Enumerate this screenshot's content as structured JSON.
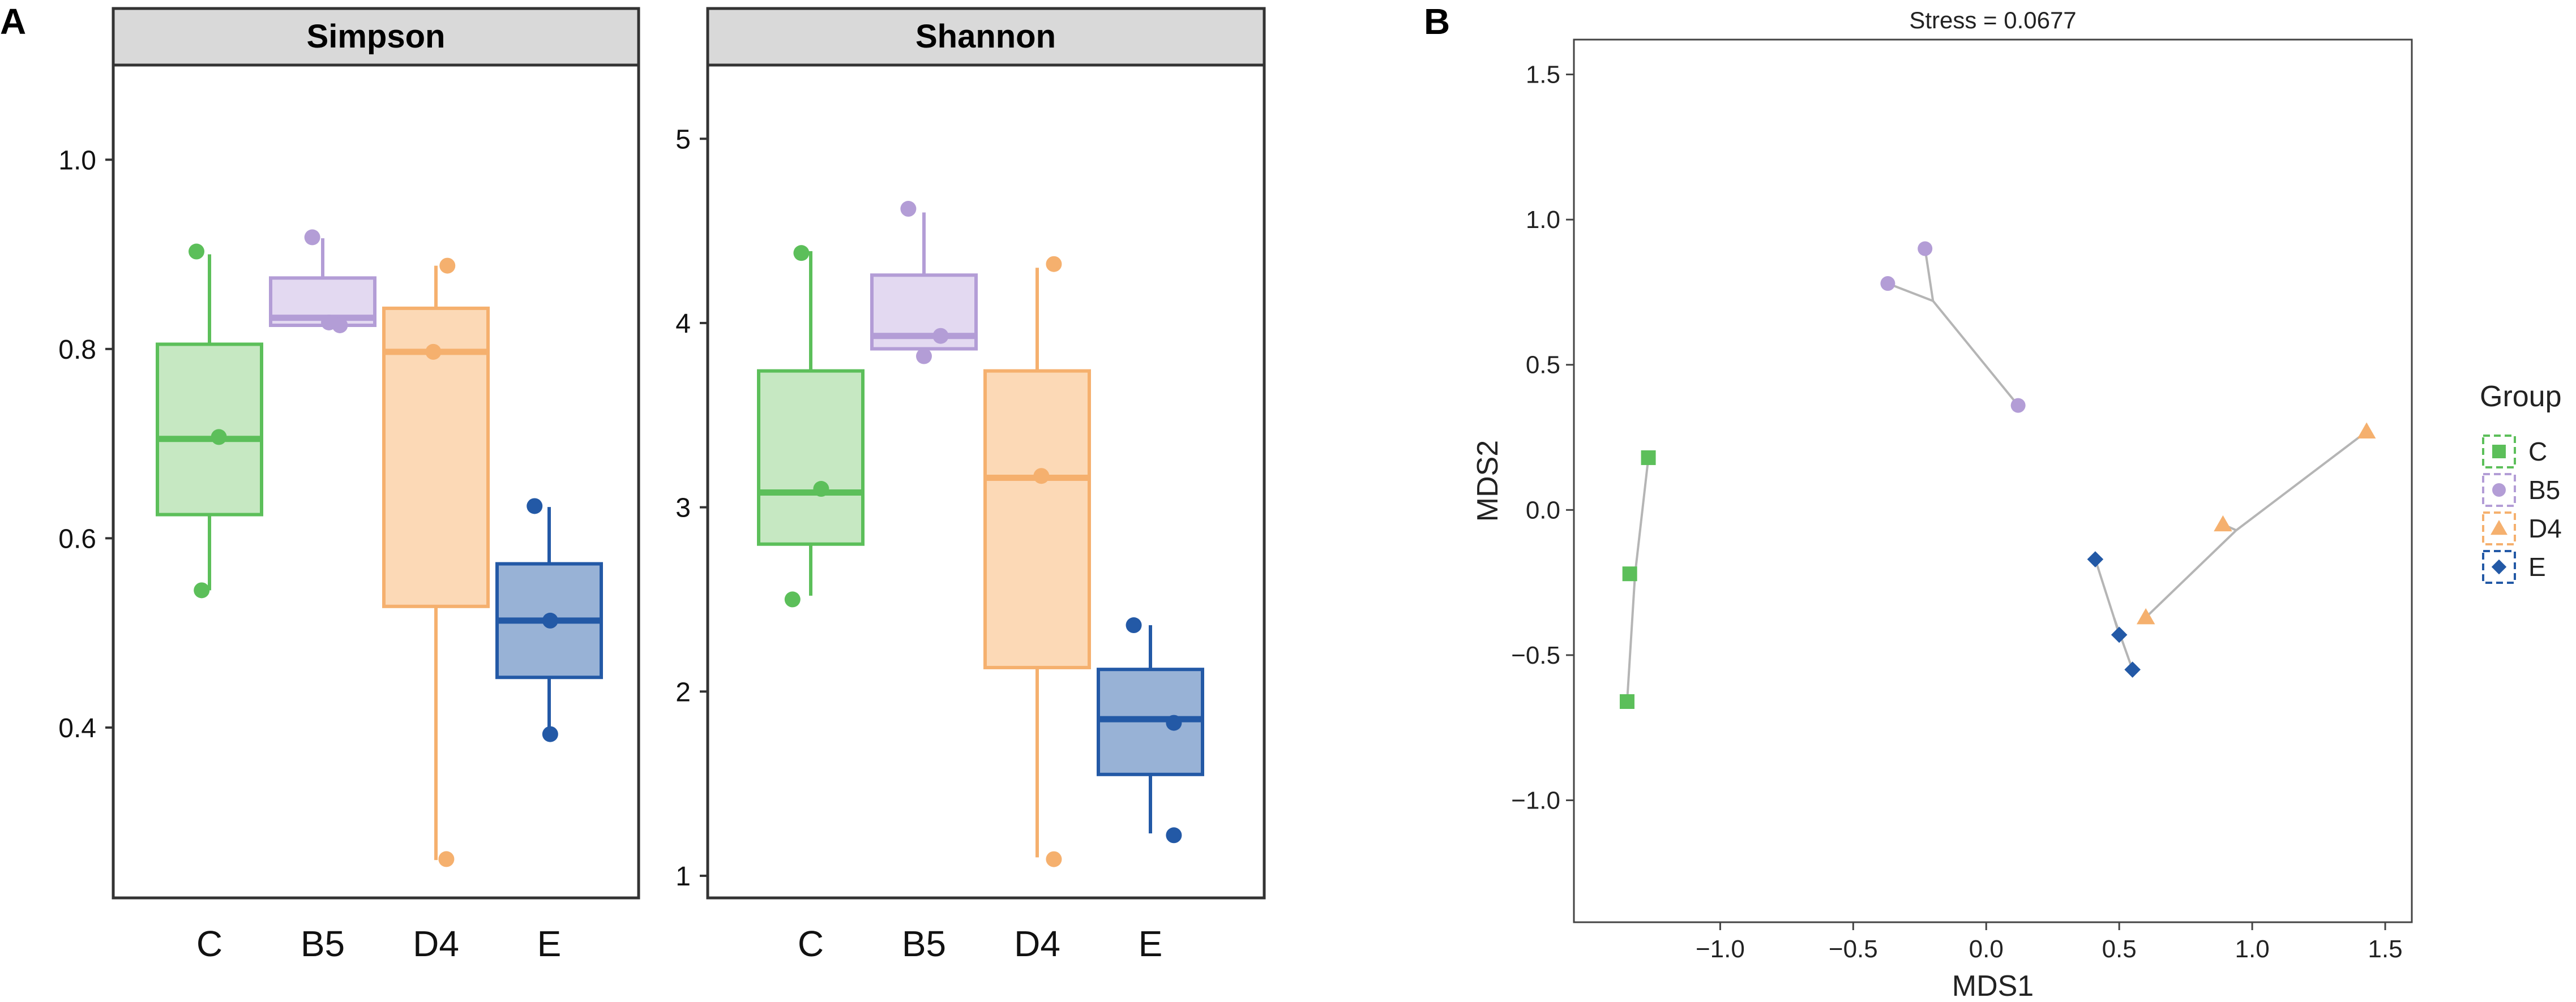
{
  "panels": {
    "a_label": "A",
    "b_label": "B"
  },
  "groups": [
    {
      "name": "C",
      "color": "#5cbf5a",
      "fill": "#c6e8c2",
      "shape": "square"
    },
    {
      "name": "B5",
      "color": "#b39dd6",
      "fill": "#e3d9f1",
      "shape": "circle"
    },
    {
      "name": "D4",
      "color": "#f5b06e",
      "fill": "#fcd9b6",
      "shape": "triangle"
    },
    {
      "name": "E",
      "color": "#2359a6",
      "fill": "#98b2d6",
      "shape": "diamond"
    }
  ],
  "chart_data": [
    {
      "type": "box",
      "title": "Simpson",
      "categories": [
        "C",
        "B5",
        "D4",
        "E"
      ],
      "ylim": [
        0.22,
        1.1
      ],
      "yticks": [
        0.4,
        0.6,
        0.8,
        1.0
      ],
      "ytick_labels": [
        "0.4",
        "0.6",
        "0.8",
        "1.0"
      ],
      "boxes": [
        {
          "q1": 0.625,
          "median": 0.705,
          "q3": 0.805,
          "whisker_low": 0.545,
          "whisker_high": 0.9
        },
        {
          "q1": 0.825,
          "median": 0.833,
          "q3": 0.875,
          "whisker_low": 0.825,
          "whisker_high": 0.917
        },
        {
          "q1": 0.528,
          "median": 0.797,
          "q3": 0.843,
          "whisker_low": 0.26,
          "whisker_high": 0.888
        },
        {
          "q1": 0.453,
          "median": 0.513,
          "q3": 0.573,
          "whisker_low": 0.393,
          "whisker_high": 0.633
        }
      ],
      "points": [
        [
          {
            "x": -0.25,
            "y": 0.903
          },
          {
            "x": 0.18,
            "y": 0.707
          },
          {
            "x": -0.15,
            "y": 0.545
          }
        ],
        [
          {
            "x": -0.2,
            "y": 0.918
          },
          {
            "x": 0.12,
            "y": 0.828
          },
          {
            "x": 0.33,
            "y": 0.825
          }
        ],
        [
          {
            "x": 0.22,
            "y": 0.888
          },
          {
            "x": -0.05,
            "y": 0.797
          },
          {
            "x": 0.2,
            "y": 0.261
          }
        ],
        [
          {
            "x": -0.28,
            "y": 0.634
          },
          {
            "x": 0.02,
            "y": 0.513
          },
          {
            "x": 0.02,
            "y": 0.393
          }
        ]
      ]
    },
    {
      "type": "box",
      "title": "Shannon",
      "categories": [
        "C",
        "B5",
        "D4",
        "E"
      ],
      "ylim": [
        0.88,
        5.4
      ],
      "yticks": [
        1,
        2,
        3,
        4,
        5
      ],
      "ytick_labels": [
        "1",
        "2",
        "3",
        "4",
        "5"
      ],
      "boxes": [
        {
          "q1": 2.8,
          "median": 3.08,
          "q3": 3.74,
          "whisker_low": 2.52,
          "whisker_high": 4.39
        },
        {
          "q1": 3.86,
          "median": 3.93,
          "q3": 4.26,
          "whisker_low": 3.8,
          "whisker_high": 4.6
        },
        {
          "q1": 2.13,
          "median": 3.16,
          "q3": 3.74,
          "whisker_low": 1.1,
          "whisker_high": 4.3
        },
        {
          "q1": 1.55,
          "median": 1.85,
          "q3": 2.12,
          "whisker_low": 1.23,
          "whisker_high": 2.36
        }
      ],
      "points": [
        [
          {
            "x": -0.18,
            "y": 4.38
          },
          {
            "x": 0.2,
            "y": 3.1
          },
          {
            "x": -0.35,
            "y": 2.5
          }
        ],
        [
          {
            "x": -0.3,
            "y": 4.62
          },
          {
            "x": 0.32,
            "y": 3.93
          },
          {
            "x": 0.0,
            "y": 3.82
          }
        ],
        [
          {
            "x": 0.32,
            "y": 4.32
          },
          {
            "x": 0.08,
            "y": 3.17
          },
          {
            "x": 0.32,
            "y": 1.09
          }
        ],
        [
          {
            "x": -0.32,
            "y": 2.36
          },
          {
            "x": 0.45,
            "y": 1.83
          },
          {
            "x": 0.45,
            "y": 1.22
          }
        ]
      ]
    },
    {
      "type": "scatter",
      "title": "Stress = 0.0677",
      "xlabel": "MDS1",
      "ylabel": "MDS2",
      "xlim": [
        -1.55,
        1.6
      ],
      "ylim": [
        -1.42,
        1.62
      ],
      "xticks": [
        -1.0,
        -0.5,
        0.0,
        0.5,
        1.0,
        1.5
      ],
      "xtick_labels": [
        "−1.0",
        "−0.5",
        "0.0",
        "0.5",
        "1.0",
        "1.5"
      ],
      "yticks": [
        -1.0,
        -0.5,
        0.0,
        0.5,
        1.0,
        1.5
      ],
      "ytick_labels": [
        "−1.0",
        "−0.5",
        "0.0",
        "0.5",
        "1.0",
        "1.5"
      ],
      "legend": {
        "title": "Group",
        "position": "right",
        "entries": [
          "C",
          "B5",
          "D4",
          "E"
        ]
      },
      "series": [
        {
          "name": "C",
          "centroid": {
            "x": -1.32,
            "y": -0.22
          },
          "points": [
            {
              "x": -1.27,
              "y": 0.18
            },
            {
              "x": -1.34,
              "y": -0.22
            },
            {
              "x": -1.35,
              "y": -0.66
            }
          ]
        },
        {
          "name": "B5",
          "centroid": {
            "x": -0.2,
            "y": 0.72
          },
          "points": [
            {
              "x": -0.23,
              "y": 0.9
            },
            {
              "x": -0.37,
              "y": 0.78
            },
            {
              "x": 0.12,
              "y": 0.36
            }
          ]
        },
        {
          "name": "D4",
          "centroid": {
            "x": 0.94,
            "y": -0.07
          },
          "points": [
            {
              "x": 1.43,
              "y": 0.27
            },
            {
              "x": 0.89,
              "y": -0.05
            },
            {
              "x": 0.6,
              "y": -0.37
            }
          ]
        },
        {
          "name": "E",
          "centroid": {
            "x": 0.48,
            "y": -0.37
          },
          "points": [
            {
              "x": 0.41,
              "y": -0.17
            },
            {
              "x": 0.5,
              "y": -0.43
            },
            {
              "x": 0.55,
              "y": -0.55
            }
          ]
        }
      ]
    }
  ]
}
